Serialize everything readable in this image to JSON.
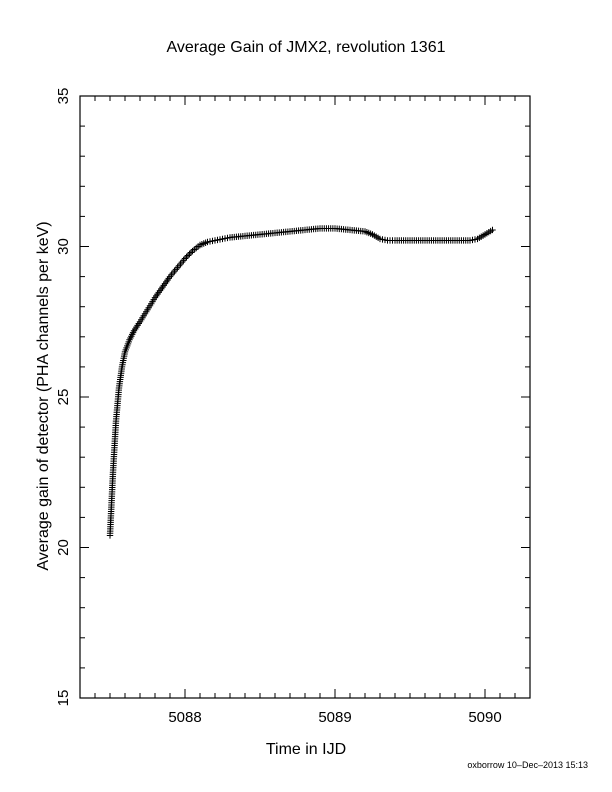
{
  "chart_data": {
    "type": "scatter",
    "title": "Average Gain of JMX2, revolution 1361",
    "xlabel": "Time in IJD",
    "ylabel": "Average gain of detector (PHA channels per keV)",
    "xlim": [
      5087.3,
      5090.3
    ],
    "ylim": [
      15,
      35
    ],
    "x_ticks": [
      5088,
      5089,
      5090
    ],
    "x_tick_labels": [
      "5088",
      "5089",
      "5090"
    ],
    "y_ticks": [
      15,
      20,
      25,
      30,
      35
    ],
    "y_tick_labels": [
      "15",
      "20",
      "25",
      "30",
      "35"
    ],
    "x_minor_step": 0.1,
    "y_minor_step": 1,
    "grid": false,
    "legend": "none",
    "marker": "plus",
    "marker_color": "#000000",
    "series": [
      {
        "x": [
          5087.5,
          5087.52,
          5087.54,
          5087.56,
          5087.58,
          5087.6,
          5087.63,
          5087.66,
          5087.7,
          5087.75,
          5087.8,
          5087.85,
          5087.9,
          5087.95,
          5088.0,
          5088.05,
          5088.1,
          5088.15,
          5088.2,
          5088.25,
          5088.3,
          5088.4,
          5088.5,
          5088.6,
          5088.7,
          5088.8,
          5088.9,
          5089.0,
          5089.1,
          5089.2,
          5089.25,
          5089.3,
          5089.35,
          5089.4,
          5089.5,
          5089.6,
          5089.7,
          5089.8,
          5089.9,
          5089.95,
          5090.0,
          5090.05
        ],
        "y": [
          20.4,
          22.5,
          24.2,
          25.3,
          26.0,
          26.5,
          26.9,
          27.2,
          27.5,
          27.9,
          28.3,
          28.65,
          29.0,
          29.3,
          29.6,
          29.85,
          30.05,
          30.15,
          30.2,
          30.25,
          30.3,
          30.35,
          30.4,
          30.45,
          30.5,
          30.55,
          30.6,
          30.6,
          30.55,
          30.5,
          30.4,
          30.25,
          30.2,
          30.2,
          30.2,
          30.2,
          30.2,
          30.2,
          30.2,
          30.25,
          30.4,
          30.55
        ]
      }
    ]
  },
  "footer": {
    "stamp": "oxborrow 10–Dec–2013 15:13"
  }
}
